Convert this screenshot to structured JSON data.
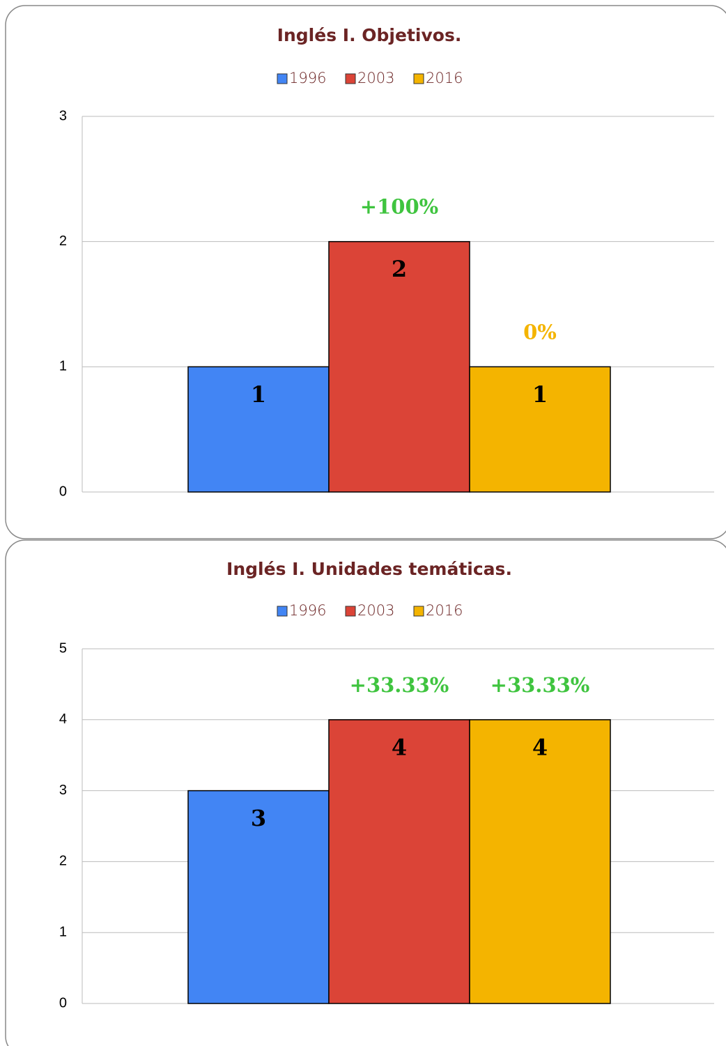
{
  "chart_data": [
    {
      "type": "bar",
      "title": "Inglés I. Objetivos.",
      "series": [
        {
          "name": "1996",
          "color": "#4285f4",
          "values": [
            1
          ]
        },
        {
          "name": "2003",
          "color": "#db4437",
          "values": [
            2
          ],
          "annotation": "+100%",
          "annotation_color": "#3fc43f"
        },
        {
          "name": "2016",
          "color": "#f4b400",
          "values": [
            1
          ],
          "annotation": "0%",
          "annotation_color": "#f4b400"
        }
      ],
      "ylim": [
        0,
        3
      ],
      "yticks": [
        0,
        1,
        2,
        3
      ],
      "grid": true
    },
    {
      "type": "bar",
      "title": "Inglés I. Unidades temáticas.",
      "series": [
        {
          "name": "1996",
          "color": "#4285f4",
          "values": [
            3
          ]
        },
        {
          "name": "2003",
          "color": "#db4437",
          "values": [
            4
          ],
          "annotation": "+33.33%",
          "annotation_color": "#3fc43f"
        },
        {
          "name": "2016",
          "color": "#f4b400",
          "values": [
            4
          ],
          "annotation": "+33.33%",
          "annotation_color": "#3fc43f"
        }
      ],
      "ylim": [
        0,
        5
      ],
      "yticks": [
        0,
        1,
        2,
        3,
        4,
        5
      ],
      "grid": true
    }
  ]
}
